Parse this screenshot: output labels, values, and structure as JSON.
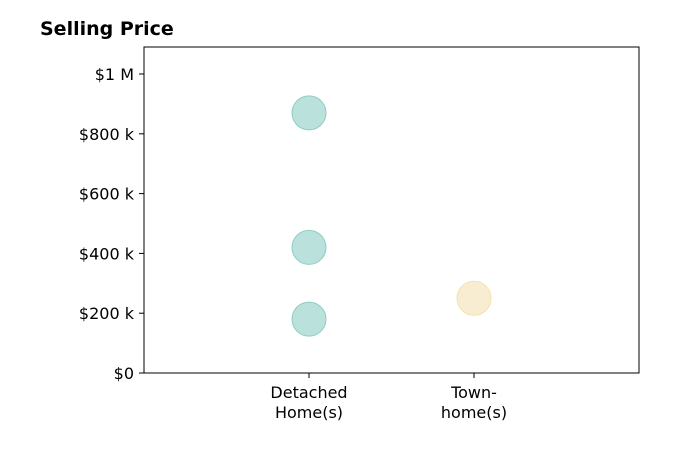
{
  "chart_data": {
    "type": "scatter",
    "title": "Selling Price",
    "xlabel": "",
    "ylabel": "",
    "categories": [
      [
        "Detached",
        "Home(s)"
      ],
      [
        "Town-",
        "home(s)"
      ]
    ],
    "x_range": [
      -1,
      2
    ],
    "ylim": [
      0,
      1000000
    ],
    "y_ticks": [
      {
        "value": 0,
        "label": "$0"
      },
      {
        "value": 200000,
        "label": "$200 k"
      },
      {
        "value": 400000,
        "label": "$400 k"
      },
      {
        "value": 600000,
        "label": "$600 k"
      },
      {
        "value": 800000,
        "label": "$800 k"
      },
      {
        "value": 1000000,
        "label": "$1 M"
      }
    ],
    "points": [
      {
        "category": 0,
        "y": 870000,
        "color": "#8ecdc4"
      },
      {
        "category": 0,
        "y": 420000,
        "color": "#8ecdc4"
      },
      {
        "category": 0,
        "y": 180000,
        "color": "#8ecdc4"
      },
      {
        "category": 1,
        "y": 250000,
        "color": "#f4e1b0"
      }
    ],
    "grid": false,
    "legend": "none"
  }
}
